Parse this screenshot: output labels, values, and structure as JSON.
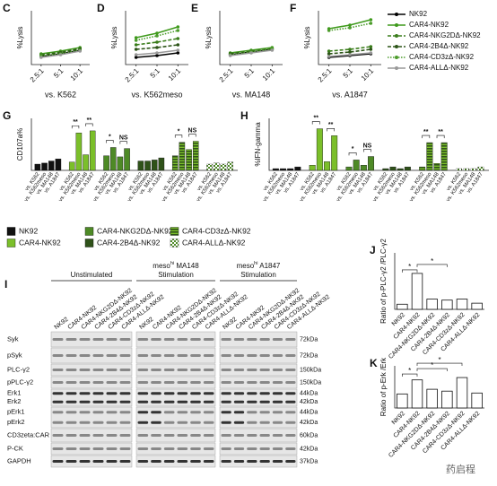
{
  "chart_data": [
    {
      "type": "line",
      "panel": "C",
      "ylabel": "%Lysis",
      "xlabel": "vs. K562",
      "categories": [
        "2.5:1",
        "5:1",
        "10:1"
      ],
      "ylim": [
        0,
        60
      ],
      "series": [
        {
          "name": "NK92",
          "color": "#000000",
          "dash": "solid",
          "values": [
            9,
            12,
            16
          ]
        },
        {
          "name": "CAR4-NK92",
          "color": "#3f9a1c",
          "dash": "solid",
          "values": [
            12,
            15,
            19
          ]
        },
        {
          "name": "CAR4-NKG2DΔ-NK92",
          "color": "#3a7d1b",
          "dash": "dashed",
          "values": [
            11,
            14,
            18
          ]
        },
        {
          "name": "CAR4-2B4Δ-NK92",
          "color": "#2c5417",
          "dash": "dashed",
          "values": [
            10,
            13,
            17
          ]
        },
        {
          "name": "CAR4-CD3zΔ-NK92",
          "color": "#4c9c2b",
          "dash": "dotted",
          "values": [
            10,
            12,
            16
          ]
        },
        {
          "name": "CAR4-ALLΔ-NK92",
          "color": "#999999",
          "dash": "solid",
          "values": [
            8,
            11,
            15
          ]
        }
      ]
    },
    {
      "type": "line",
      "panel": "D",
      "ylabel": "%Lysis",
      "xlabel": "vs. K562meso",
      "categories": [
        "2.5:1",
        "5:1",
        "10:1"
      ],
      "ylim": [
        0,
        60
      ],
      "series": [
        {
          "name": "NK92",
          "color": "#000000",
          "dash": "solid",
          "values": [
            8,
            10,
            13
          ]
        },
        {
          "name": "CAR4-NK92",
          "color": "#3f9a1c",
          "dash": "solid",
          "values": [
            30,
            35,
            42
          ]
        },
        {
          "name": "CAR4-NKG2DΔ-NK92",
          "color": "#3a7d1b",
          "dash": "dashed",
          "values": [
            22,
            25,
            29
          ]
        },
        {
          "name": "CAR4-2B4Δ-NK92",
          "color": "#2c5417",
          "dash": "dashed",
          "values": [
            17,
            19,
            22
          ]
        },
        {
          "name": "CAR4-CD3zΔ-NK92",
          "color": "#4c9c2b",
          "dash": "dotted",
          "values": [
            27,
            32,
            38
          ]
        },
        {
          "name": "CAR4-ALLΔ-NK92",
          "color": "#999999",
          "dash": "solid",
          "values": [
            11,
            13,
            16
          ]
        }
      ]
    },
    {
      "type": "line",
      "panel": "E",
      "ylabel": "%Lysis",
      "xlabel": "vs. MA148",
      "categories": [
        "2.5:1",
        "5:1",
        "10:1"
      ],
      "ylim": [
        0,
        60
      ],
      "series": [
        {
          "name": "NK92",
          "color": "#000000",
          "dash": "solid",
          "values": [
            11,
            14,
            17
          ]
        },
        {
          "name": "CAR4-NK92",
          "color": "#3f9a1c",
          "dash": "solid",
          "values": [
            13,
            16,
            19
          ]
        },
        {
          "name": "CAR4-NKG2DΔ-NK92",
          "color": "#3a7d1b",
          "dash": "dashed",
          "values": [
            12,
            15,
            18
          ]
        },
        {
          "name": "CAR4-2B4Δ-NK92",
          "color": "#2c5417",
          "dash": "dashed",
          "values": [
            12,
            14,
            17
          ]
        },
        {
          "name": "CAR4-CD3zΔ-NK92",
          "color": "#4c9c2b",
          "dash": "dotted",
          "values": [
            11,
            14,
            18
          ]
        },
        {
          "name": "CAR4-ALLΔ-NK92",
          "color": "#999999",
          "dash": "solid",
          "values": [
            10,
            13,
            16
          ]
        }
      ]
    },
    {
      "type": "line",
      "panel": "F",
      "ylabel": "%Lysis",
      "xlabel": "vs. A1847",
      "categories": [
        "2.5:1",
        "5:1",
        "10:1"
      ],
      "ylim": [
        0,
        60
      ],
      "series": [
        {
          "name": "NK92",
          "color": "#000000",
          "dash": "solid",
          "values": [
            8,
            10,
            12
          ]
        },
        {
          "name": "CAR4-NK92",
          "color": "#3f9a1c",
          "dash": "solid",
          "values": [
            40,
            44,
            50
          ]
        },
        {
          "name": "CAR4-NKG2DΔ-NK92",
          "color": "#3a7d1b",
          "dash": "dashed",
          "values": [
            15,
            17,
            20
          ]
        },
        {
          "name": "CAR4-2B4Δ-NK92",
          "color": "#2c5417",
          "dash": "dashed",
          "values": [
            12,
            14,
            17
          ]
        },
        {
          "name": "CAR4-CD3zΔ-NK92",
          "color": "#4c9c2b",
          "dash": "dotted",
          "values": [
            38,
            41,
            46
          ]
        },
        {
          "name": "CAR4-ALLΔ-NK92",
          "color": "#999999",
          "dash": "solid",
          "values": [
            9,
            11,
            13
          ]
        }
      ]
    },
    {
      "type": "grouped-bar",
      "panel": "G",
      "ylabel": "CD107a%",
      "categories": [
        "vs. K562",
        "vs. K562meso",
        "vs. MA148",
        "vs. A1847"
      ],
      "ylim": [
        0,
        50
      ],
      "series": [
        {
          "name": "NK92",
          "color": "#111111",
          "values": [
            6,
            7,
            9,
            11
          ]
        },
        {
          "name": "CAR4-NK92",
          "color": "#7bbf2a",
          "values": [
            8,
            36,
            15,
            38
          ],
          "significance": [
            "**",
            "**"
          ]
        },
        {
          "name": "CAR4-NKG2DΔ-NK92",
          "color": "#4e8a26",
          "values": [
            14,
            22,
            13,
            21
          ],
          "significance": [
            "*",
            "NS"
          ]
        },
        {
          "name": "CAR4-2B4Δ-NK92",
          "color": "#2f5219",
          "values": [
            9,
            9,
            10,
            12
          ]
        },
        {
          "name": "CAR4-CD3zΔ-NK92",
          "color": "#7bbf2a",
          "pattern": "stripes",
          "values": [
            14,
            27,
            20,
            28
          ],
          "significance": [
            "*",
            "NS"
          ]
        },
        {
          "name": "CAR4-ALLΔ-NK92",
          "color": "#4e8a26",
          "pattern": "checker",
          "values": [
            6,
            7,
            6,
            8
          ]
        }
      ]
    },
    {
      "type": "grouped-bar",
      "panel": "H",
      "ylabel": "%IFN-gamma",
      "categories": [
        "vs. K562",
        "vs. K562meso",
        "vs. MA148",
        "vs. A1847"
      ],
      "ylim": [
        0,
        30
      ],
      "series": [
        {
          "name": "NK92",
          "color": "#111111",
          "values": [
            1,
            1,
            1,
            2
          ]
        },
        {
          "name": "CAR4-NK92",
          "color": "#7bbf2a",
          "values": [
            3,
            24,
            5,
            20
          ],
          "significance": [
            "**",
            "**"
          ]
        },
        {
          "name": "CAR4-NKG2DΔ-NK92",
          "color": "#4e8a26",
          "values": [
            2,
            6,
            3,
            8
          ],
          "significance": [
            "*",
            "NS"
          ]
        },
        {
          "name": "CAR4-2B4Δ-NK92",
          "color": "#2f5219",
          "values": [
            1,
            2,
            1,
            2
          ]
        },
        {
          "name": "CAR4-CD3zΔ-NK92",
          "color": "#7bbf2a",
          "pattern": "stripes",
          "values": [
            2,
            16,
            4,
            16
          ],
          "significance": [
            "**",
            "**"
          ]
        },
        {
          "name": "CAR4-ALLΔ-NK92",
          "color": "#4e8a26",
          "pattern": "checker",
          "values": [
            1,
            1,
            1,
            2
          ]
        }
      ]
    },
    {
      "type": "bar",
      "panel": "J",
      "ylabel": "Ratio of p-PLC-γ2 /PLC-γ2",
      "categories": [
        "NK92",
        "CAR4-NK92",
        "CAR4-NKG2DΔ-NK92",
        "CAR4-2B4Δ-NK92",
        "CAR4-CD3zΔ-NK92",
        "CAR4-ALLΔ-NK92"
      ],
      "values": [
        1,
        7,
        2,
        1.8,
        2,
        1.2
      ],
      "color": "#ffffff",
      "ylim": [
        0,
        11
      ],
      "significance": [
        "*",
        "*"
      ]
    },
    {
      "type": "bar",
      "panel": "K",
      "ylabel": "Ratio of p-Erk /Erk",
      "categories": [
        "NK92",
        "CAR4-NK92",
        "CAR4-NKG2DΔ-NK92",
        "CAR4-2B4Δ-NK92",
        "CAR4-CD3zΔ-NK92",
        "CAR4-ALLΔ-NK92"
      ],
      "values": [
        3,
        6,
        4,
        3.6,
        6.5,
        3.2
      ],
      "color": "#ffffff",
      "ylim": [
        0,
        9
      ],
      "significance": [
        "*",
        "*",
        "*"
      ]
    }
  ],
  "blot": {
    "panel": "I",
    "groups": [
      {
        "main": "Unstimulated",
        "lanes": [
          "NK92",
          "CAR4-NK92",
          "CAR4-NKG2DΔ-NK92",
          "CAR4-2B4Δ-NK92",
          "CAR4-CD3zΔ-NK92",
          "CAR4-ALLΔ-NK92"
        ]
      },
      {
        "main": "meso",
        "sup": "hi",
        "rest": " MA148",
        "line2": "Stimulation",
        "lanes": [
          "NK92",
          "CAR4-NK92",
          "CAR4-NKG2DΔ-NK92",
          "CAR4-2B4Δ-NK92",
          "CAR4-CD3zΔ-NK92",
          "CAR4-ALLΔ-NK92"
        ]
      },
      {
        "main": "meso",
        "sup": "hi",
        "rest": " A1847",
        "line2": "Stimulation",
        "lanes": [
          "NK92",
          "CAR4-NK92",
          "CAR4-NKG2DΔ-NK92",
          "CAR4-2B4Δ-NK92",
          "CAR4-CD3zΔ-NK92",
          "CAR4-ALLΔ-NK92"
        ]
      }
    ],
    "rows": [
      {
        "labels": [
          "Syk"
        ],
        "kda": [
          "72kDa"
        ]
      },
      {
        "labels": [
          "pSyk"
        ],
        "kda": [
          "72kDa"
        ]
      },
      {
        "labels": [
          "PLC-γ2"
        ],
        "kda": [
          "150kDa"
        ]
      },
      {
        "labels": [
          "pPLC-γ2"
        ],
        "kda": [
          "150kDa"
        ]
      },
      {
        "labels": [
          "Erk1",
          "Erk2"
        ],
        "kda": [
          "44kDa",
          "42kDa"
        ]
      },
      {
        "labels": [
          "pErk1",
          "pErk2"
        ],
        "kda": [
          "44kDa",
          "42kDa"
        ]
      },
      {
        "labels": [
          "CD3zeta:CAR"
        ],
        "kda": [
          "60kDa"
        ]
      },
      {
        "labels": [
          "P-CK"
        ],
        "kda": [
          "42kDa"
        ]
      },
      {
        "labels": [
          "GAPDH"
        ],
        "kda": [
          "37kDa"
        ]
      }
    ]
  },
  "watermark": "药启程"
}
